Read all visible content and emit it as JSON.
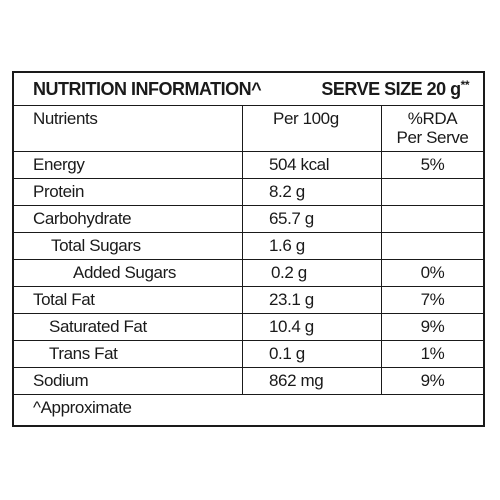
{
  "title": {
    "left": "NUTRITION INFORMATION^",
    "serve_label": "SERVE SIZE 20 g",
    "serve_mark": "**"
  },
  "headers": {
    "nutrients": "Nutrients",
    "per100": "Per 100g",
    "rda_line1": "%RDA",
    "rda_line2": "Per Serve"
  },
  "rows": [
    {
      "name": "Energy",
      "per100": "504 kcal",
      "rda": "5%"
    },
    {
      "name": "Protein",
      "per100": "8.2 g",
      "rda": ""
    },
    {
      "name": "Carbohydrate",
      "per100": "65.7 g",
      "rda": ""
    },
    {
      "name": "Total Sugars",
      "per100": "1.6 g",
      "rda": ""
    },
    {
      "name": "Added Sugars",
      "per100": "0.2 g",
      "rda": "0%"
    },
    {
      "name": "Total Fat",
      "per100": "23.1 g",
      "rda": "7%"
    },
    {
      "name": "Saturated Fat",
      "per100": "10.4 g",
      "rda": "9%"
    },
    {
      "name": "Trans Fat",
      "per100": "0.1 g",
      "rda": "1%"
    },
    {
      "name": "Sodium",
      "per100": "862 mg",
      "rda": "9%"
    }
  ],
  "footnote": "^Approximate"
}
